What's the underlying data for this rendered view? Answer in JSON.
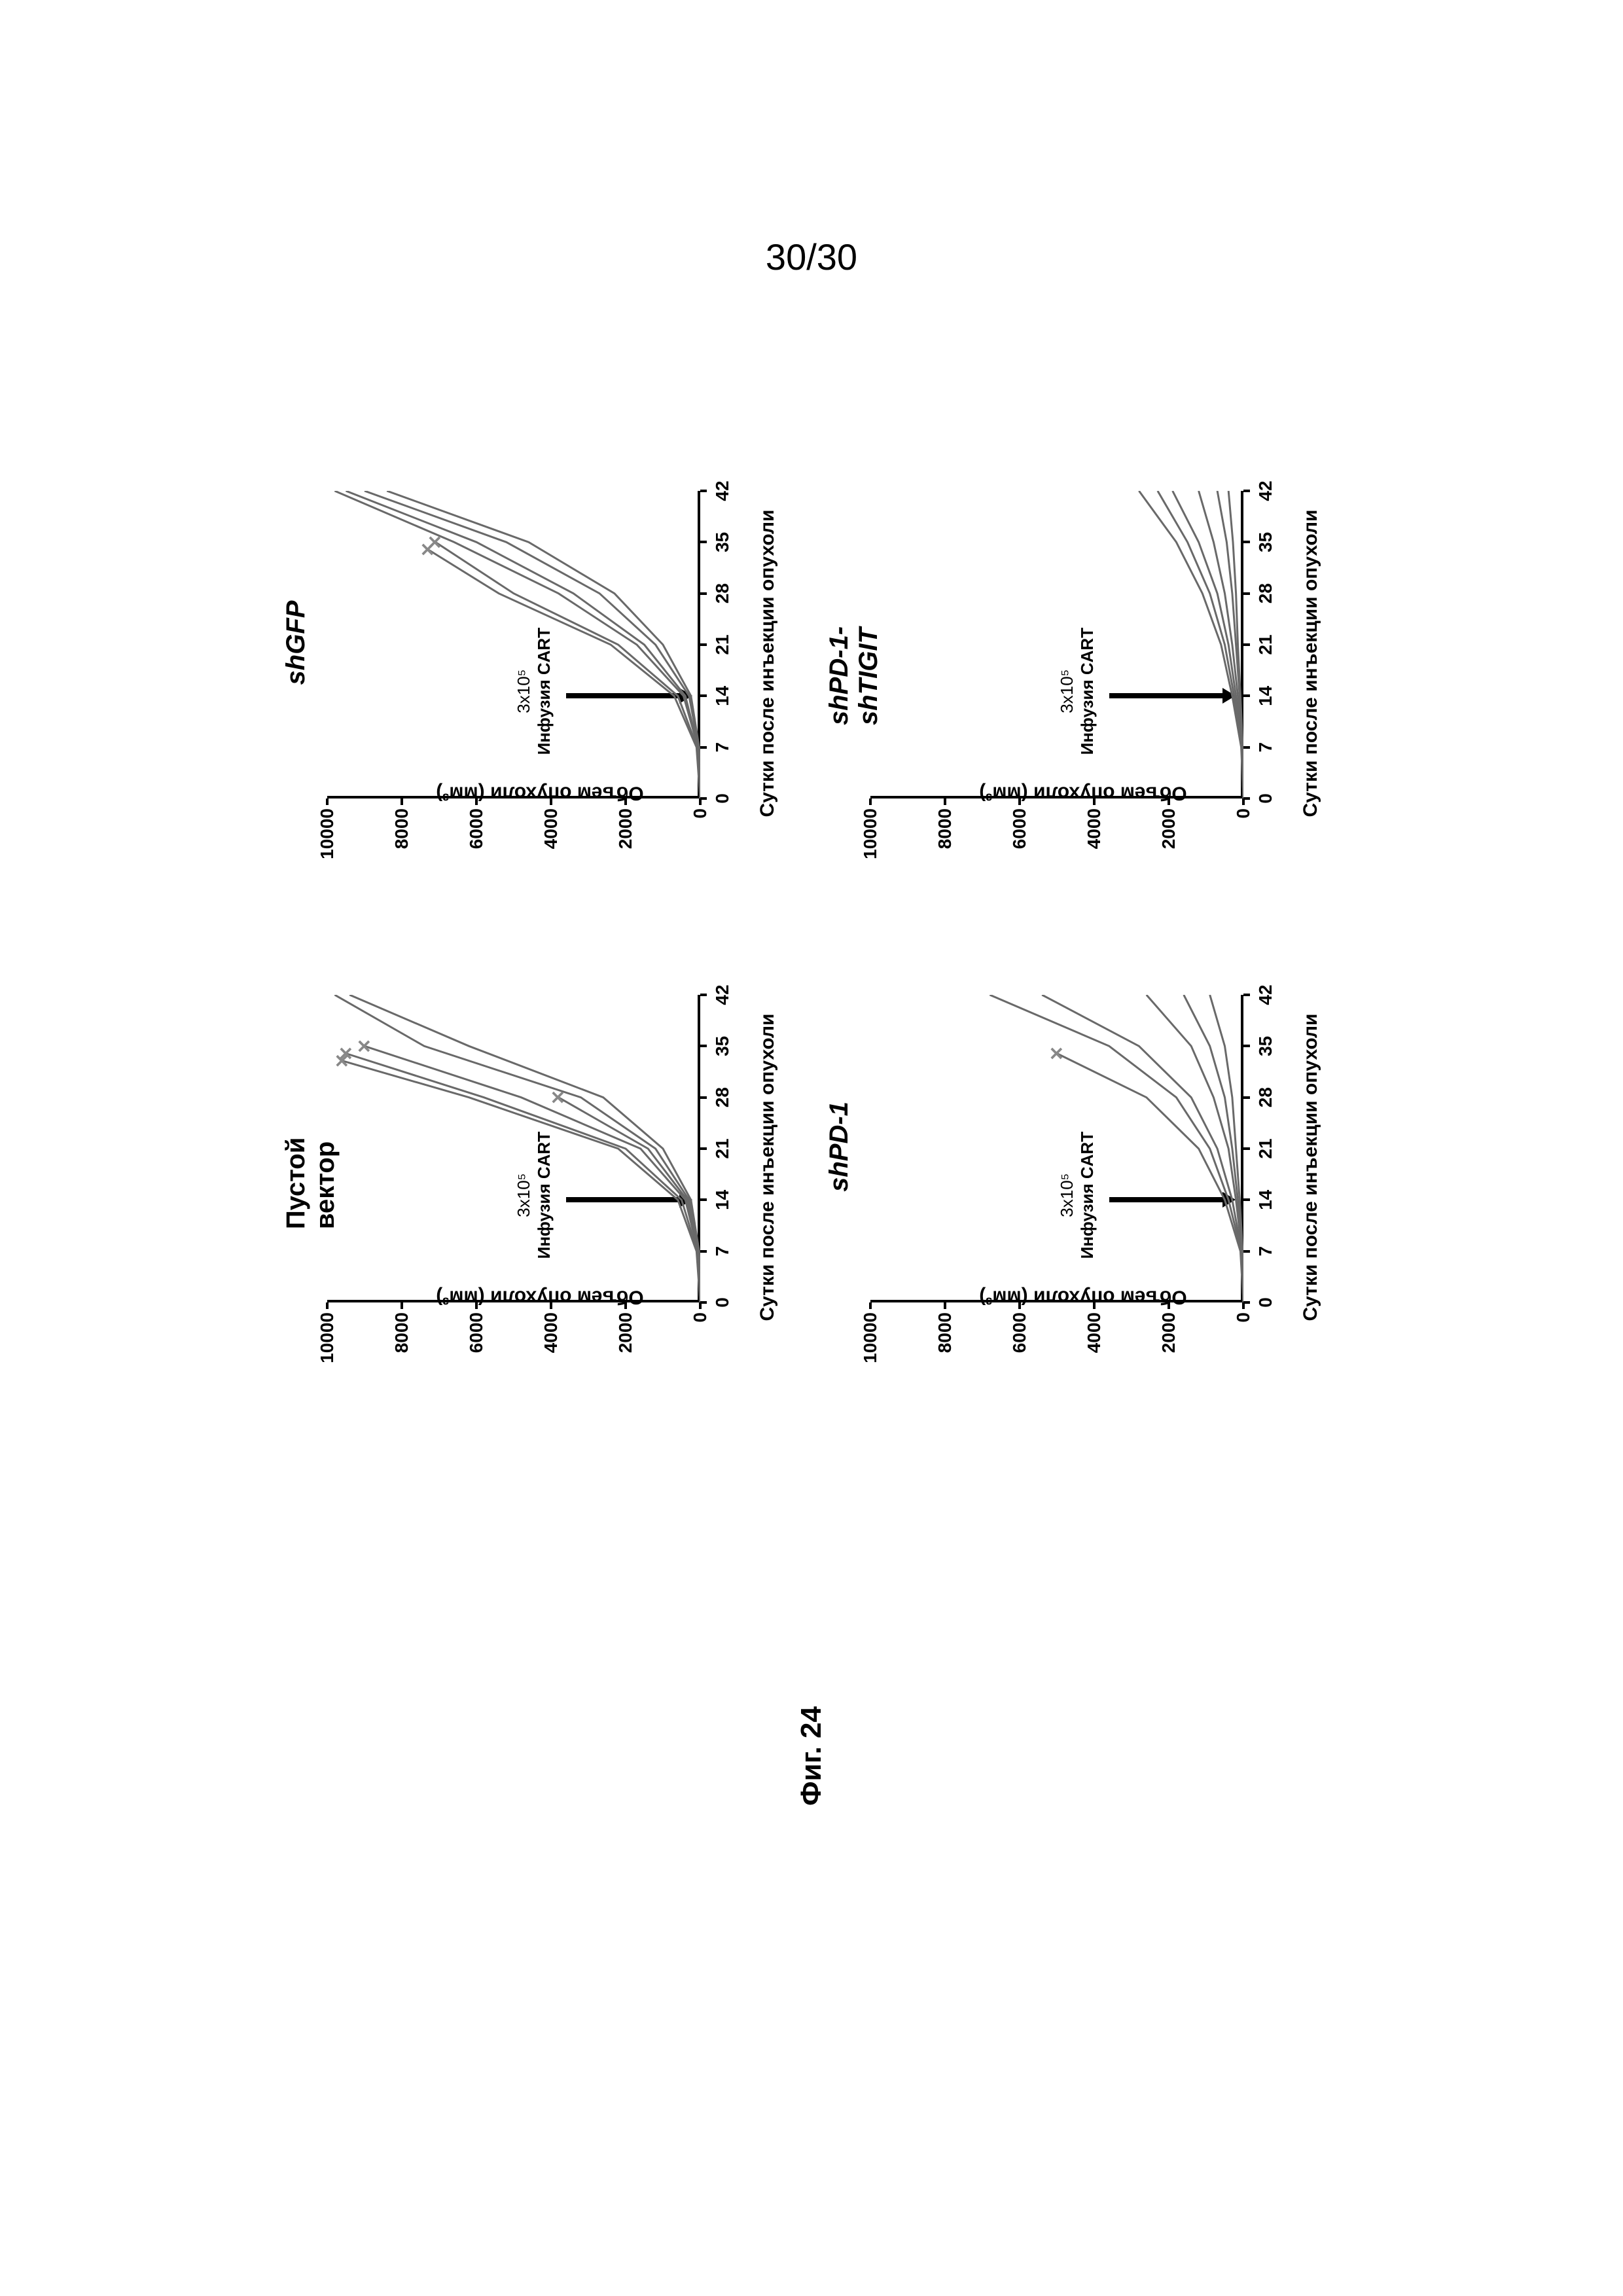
{
  "page_number": "30/30",
  "figure_label": "Фиг. 24",
  "charts": [
    {
      "id": "empty-vector",
      "title": "Пустой вектор",
      "title_italic": false,
      "y_label": "Объем опухоли (мм³)",
      "x_label": "Сутки после инъекции опухоли",
      "infusion_text_1": "3x10⁵",
      "infusion_text_2": "Инфузия CART",
      "y_ticks": [
        0,
        2000,
        4000,
        6000,
        8000,
        10000
      ],
      "x_ticks": [
        0,
        7,
        14,
        21,
        28,
        35,
        42
      ],
      "y_max": 10000,
      "x_max": 42,
      "curves": [
        [
          [
            0,
            0
          ],
          [
            7,
            100
          ],
          [
            14,
            600
          ],
          [
            21,
            2200
          ],
          [
            28,
            6200
          ],
          [
            33,
            9600
          ]
        ],
        [
          [
            0,
            0
          ],
          [
            7,
            80
          ],
          [
            14,
            500
          ],
          [
            21,
            2000
          ],
          [
            28,
            5800
          ],
          [
            34,
            9500
          ]
        ],
        [
          [
            0,
            0
          ],
          [
            7,
            60
          ],
          [
            14,
            400
          ],
          [
            21,
            1600
          ],
          [
            28,
            4800
          ],
          [
            35,
            9000
          ]
        ],
        [
          [
            0,
            0
          ],
          [
            7,
            50
          ],
          [
            14,
            350
          ],
          [
            21,
            1400
          ],
          [
            28,
            3800
          ]
        ],
        [
          [
            0,
            0
          ],
          [
            7,
            40
          ],
          [
            14,
            300
          ],
          [
            21,
            1200
          ],
          [
            28,
            3200
          ],
          [
            35,
            7400
          ],
          [
            42,
            9800
          ]
        ],
        [
          [
            0,
            0
          ],
          [
            7,
            30
          ],
          [
            14,
            250
          ],
          [
            21,
            1000
          ],
          [
            28,
            2600
          ],
          [
            35,
            6200
          ],
          [
            42,
            9400
          ]
        ]
      ],
      "deaths": [
        [
          33,
          9600
        ],
        [
          34,
          9500
        ],
        [
          35,
          9000
        ],
        [
          28,
          3800
        ]
      ]
    },
    {
      "id": "shgfp",
      "title": "shGFP",
      "title_italic": true,
      "y_label": "Объем опухоли (мм³)",
      "x_label": "Сутки после инъекции опухоли",
      "infusion_text_1": "3x10⁵",
      "infusion_text_2": "Инфузия CART",
      "y_ticks": [
        0,
        2000,
        4000,
        6000,
        8000,
        10000
      ],
      "x_ticks": [
        0,
        7,
        14,
        21,
        28,
        35,
        42
      ],
      "y_max": 10000,
      "x_max": 42,
      "curves": [
        [
          [
            0,
            0
          ],
          [
            7,
            100
          ],
          [
            14,
            700
          ],
          [
            21,
            2400
          ],
          [
            28,
            5400
          ],
          [
            34,
            7300
          ]
        ],
        [
          [
            0,
            0
          ],
          [
            7,
            80
          ],
          [
            14,
            600
          ],
          [
            21,
            2200
          ],
          [
            28,
            5000
          ],
          [
            35,
            7100
          ]
        ],
        [
          [
            0,
            0
          ],
          [
            7,
            60
          ],
          [
            14,
            450
          ],
          [
            21,
            1700
          ],
          [
            28,
            3800
          ],
          [
            35,
            6600
          ],
          [
            42,
            9800
          ]
        ],
        [
          [
            0,
            0
          ],
          [
            7,
            50
          ],
          [
            14,
            400
          ],
          [
            21,
            1500
          ],
          [
            28,
            3400
          ],
          [
            35,
            6000
          ],
          [
            42,
            9500
          ]
        ],
        [
          [
            0,
            0
          ],
          [
            7,
            40
          ],
          [
            14,
            300
          ],
          [
            21,
            1200
          ],
          [
            28,
            2700
          ],
          [
            35,
            5200
          ],
          [
            42,
            9000
          ]
        ],
        [
          [
            0,
            0
          ],
          [
            7,
            30
          ],
          [
            14,
            250
          ],
          [
            21,
            1000
          ],
          [
            28,
            2300
          ],
          [
            35,
            4600
          ],
          [
            42,
            8400
          ]
        ]
      ],
      "deaths": [
        [
          34,
          7300
        ],
        [
          35,
          7100
        ]
      ]
    },
    {
      "id": "shpd1",
      "title": "shPD-1",
      "title_italic": true,
      "y_label": "Объем опухоли (мм³)",
      "x_label": "Сутки после инъекции опухоли",
      "infusion_text_1": "3x10⁵",
      "infusion_text_2": "Инфузия CART",
      "y_ticks": [
        0,
        2000,
        4000,
        6000,
        8000,
        10000
      ],
      "x_ticks": [
        0,
        7,
        14,
        21,
        28,
        35,
        42
      ],
      "y_max": 10000,
      "x_max": 42,
      "curves": [
        [
          [
            0,
            0
          ],
          [
            7,
            80
          ],
          [
            14,
            500
          ],
          [
            21,
            1200
          ],
          [
            28,
            2600
          ],
          [
            34,
            5000
          ]
        ],
        [
          [
            0,
            0
          ],
          [
            7,
            60
          ],
          [
            14,
            400
          ],
          [
            21,
            900
          ],
          [
            28,
            1800
          ],
          [
            35,
            3600
          ],
          [
            42,
            6800
          ]
        ],
        [
          [
            0,
            0
          ],
          [
            7,
            50
          ],
          [
            14,
            300
          ],
          [
            21,
            700
          ],
          [
            28,
            1400
          ],
          [
            35,
            2800
          ],
          [
            42,
            5400
          ]
        ],
        [
          [
            0,
            0
          ],
          [
            7,
            40
          ],
          [
            14,
            200
          ],
          [
            21,
            400
          ],
          [
            28,
            800
          ],
          [
            35,
            1400
          ],
          [
            42,
            2600
          ]
        ],
        [
          [
            0,
            0
          ],
          [
            7,
            30
          ],
          [
            14,
            150
          ],
          [
            21,
            300
          ],
          [
            28,
            500
          ],
          [
            35,
            900
          ],
          [
            42,
            1600
          ]
        ],
        [
          [
            0,
            0
          ],
          [
            7,
            20
          ],
          [
            14,
            100
          ],
          [
            21,
            200
          ],
          [
            28,
            300
          ],
          [
            35,
            500
          ],
          [
            42,
            900
          ]
        ]
      ],
      "deaths": [
        [
          34,
          5000
        ]
      ]
    },
    {
      "id": "shpd1-shtigit",
      "title": "shPD-1-shTIGIT",
      "title_italic": true,
      "y_label": "Объем опухоли (мм³)",
      "x_label": "Сутки после инъекции опухоли",
      "infusion_text_1": "3x10⁵",
      "infusion_text_2": "Инфузия CART",
      "y_ticks": [
        0,
        2000,
        4000,
        6000,
        8000,
        10000
      ],
      "x_ticks": [
        0,
        7,
        14,
        21,
        28,
        35,
        42
      ],
      "y_max": 10000,
      "x_max": 42,
      "curves": [
        [
          [
            0,
            0
          ],
          [
            7,
            60
          ],
          [
            14,
            300
          ],
          [
            21,
            600
          ],
          [
            28,
            1100
          ],
          [
            35,
            1800
          ],
          [
            42,
            2800
          ]
        ],
        [
          [
            0,
            0
          ],
          [
            7,
            50
          ],
          [
            14,
            250
          ],
          [
            21,
            500
          ],
          [
            28,
            900
          ],
          [
            35,
            1500
          ],
          [
            42,
            2300
          ]
        ],
        [
          [
            0,
            0
          ],
          [
            7,
            40
          ],
          [
            14,
            200
          ],
          [
            21,
            400
          ],
          [
            28,
            700
          ],
          [
            35,
            1200
          ],
          [
            42,
            1900
          ]
        ],
        [
          [
            0,
            0
          ],
          [
            7,
            30
          ],
          [
            14,
            150
          ],
          [
            21,
            300
          ],
          [
            28,
            500
          ],
          [
            35,
            800
          ],
          [
            42,
            1200
          ]
        ],
        [
          [
            0,
            0
          ],
          [
            7,
            20
          ],
          [
            14,
            100
          ],
          [
            21,
            200
          ],
          [
            28,
            300
          ],
          [
            35,
            450
          ],
          [
            42,
            700
          ]
        ],
        [
          [
            0,
            0
          ],
          [
            7,
            15
          ],
          [
            14,
            80
          ],
          [
            21,
            150
          ],
          [
            28,
            200
          ],
          [
            35,
            280
          ],
          [
            42,
            400
          ]
        ]
      ],
      "deaths": []
    }
  ],
  "colors": {
    "axis": "#000000",
    "curve": "#696969",
    "death_marker": "#888888"
  },
  "plot": {
    "curve_stroke_width": 3
  }
}
